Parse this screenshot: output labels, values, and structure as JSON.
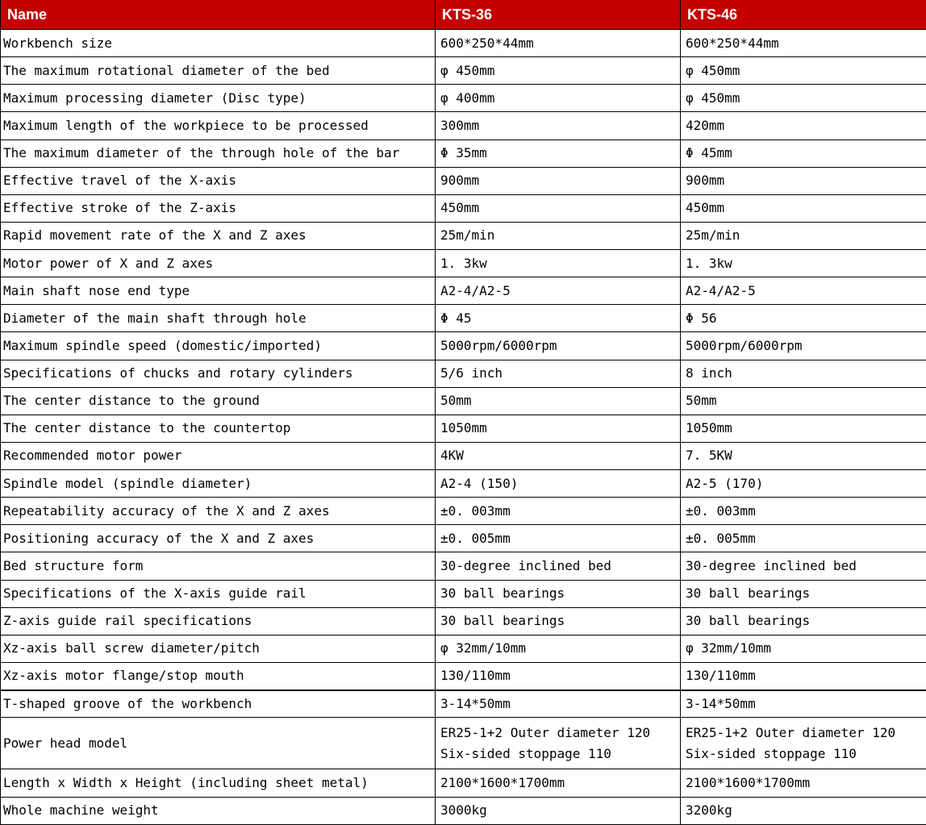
{
  "theme": {
    "header_bg": "#C40000",
    "header_text": "#FFFFFF",
    "grid_border": "#000000",
    "body_bg": "#FFFFFF",
    "body_text": "#000000"
  },
  "header": {
    "columns": [
      "Name",
      "KTS-36",
      "KTS-46"
    ]
  },
  "table": {
    "rows": [
      [
        "Workbench size",
        "600*250*44mm",
        "600*250*44mm"
      ],
      [
        "The maximum rotational diameter of the bed",
        "φ 450mm",
        "φ 450mm"
      ],
      [
        "Maximum processing diameter (Disc type)",
        "φ 400mm",
        "φ 450mm"
      ],
      [
        "Maximum length of the workpiece to be processed",
        "300mm",
        "420mm"
      ],
      [
        "The maximum diameter of the through hole of the bar",
        "Φ 35mm",
        "Φ 45mm"
      ],
      [
        "Effective travel of the X-axis",
        "900mm",
        "900mm"
      ],
      [
        "Effective stroke of the Z-axis",
        "450mm",
        "450mm"
      ],
      [
        "Rapid movement rate of the X and Z axes",
        "25m/min",
        "25m/min"
      ],
      [
        "Motor power of X and Z axes",
        "1. 3kw",
        "1. 3kw"
      ],
      [
        "Main shaft nose end type",
        "A2-4/A2-5",
        "A2-4/A2-5"
      ],
      [
        "Diameter of the main shaft through hole",
        "Φ 45",
        "Φ 56"
      ],
      [
        "Maximum spindle speed (domestic/imported)",
        "5000rpm/6000rpm",
        "5000rpm/6000rpm"
      ],
      [
        "Specifications of chucks and rotary cylinders",
        "5/6 inch",
        "8 inch"
      ],
      [
        "The center distance to the ground",
        "50mm",
        "50mm"
      ],
      [
        "The center distance to the countertop",
        "1050mm",
        "1050mm"
      ],
      [
        "Recommended motor power",
        "4KW",
        "7. 5KW"
      ],
      [
        "Spindle model (spindle diameter)",
        "A2-4 (150)",
        "A2-5 (170)"
      ],
      [
        "Repeatability accuracy of the X and Z axes",
        "±0. 003mm",
        "±0. 003mm"
      ],
      [
        "Positioning accuracy of the X and Z axes",
        "±0. 005mm",
        "±0. 005mm"
      ],
      [
        "Bed structure form",
        "30-degree inclined bed",
        "30-degree inclined bed"
      ],
      [
        "Specifications of the X-axis guide rail",
        "30 ball bearings",
        "30 ball bearings"
      ],
      [
        "Z-axis guide rail specifications",
        "30 ball bearings",
        "30 ball bearings"
      ],
      [
        "Xz-axis ball screw diameter/pitch",
        "φ 32mm/10mm",
        "φ 32mm/10mm"
      ],
      [
        "Xz-axis motor flange/stop mouth",
        "130/110mm",
        "130/110mm"
      ],
      [
        "T-shaped groove of the workbench",
        "3-14*50mm",
        "3-14*50mm"
      ],
      [
        "Power head model",
        "ER25-1+2 Outer diameter 120\nSix-sided stoppage 110",
        "ER25-1+2 Outer diameter 120\nSix-sided stoppage 110"
      ],
      [
        "Length x Width x Height (including sheet metal)",
        "2100*1600*1700mm",
        "2100*1600*1700mm"
      ],
      [
        "Whole machine weight",
        "3000kg",
        "3200kg"
      ]
    ],
    "thick_top_row_index": 24,
    "double_height_row_index": 25
  }
}
